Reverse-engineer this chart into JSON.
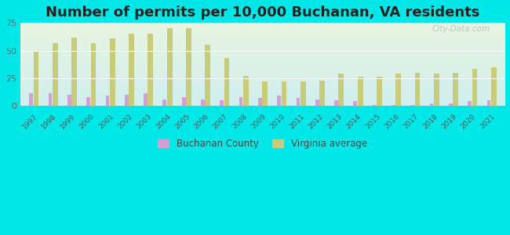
{
  "title": "Number of permits per 10,000 Buchanan, VA residents",
  "years": [
    1997,
    1998,
    1999,
    2000,
    2001,
    2002,
    2003,
    2004,
    2005,
    2006,
    2007,
    2008,
    2009,
    2010,
    2011,
    2012,
    2013,
    2014,
    2015,
    2016,
    2017,
    2018,
    2019,
    2020,
    2021
  ],
  "buchanan_county": [
    11,
    11,
    10,
    8,
    9,
    10,
    11,
    6,
    8,
    6,
    5,
    8,
    7,
    9,
    7,
    6,
    5,
    4,
    1,
    1,
    1,
    2,
    2,
    4,
    5
  ],
  "virginia_avg": [
    50,
    57,
    62,
    57,
    61,
    65,
    65,
    70,
    70,
    55,
    43,
    27,
    22,
    22,
    22,
    23,
    29,
    26,
    26,
    29,
    30,
    29,
    30,
    33,
    35
  ],
  "buchanan_color": "#d4a0d4",
  "virginia_color": "#c8cc7a",
  "bg_outer": "#00e8e8",
  "bg_plot_color1": "#d0efef",
  "bg_plot_color2": "#e8f5e0",
  "ylim": [
    0,
    75
  ],
  "yticks": [
    0,
    25,
    50,
    75
  ],
  "title_fontsize": 13,
  "bar_width": 0.28,
  "watermark": "City-Data.com"
}
